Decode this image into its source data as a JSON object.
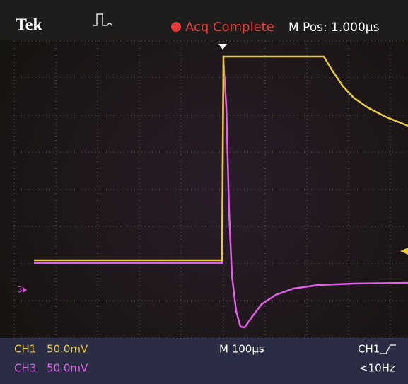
{
  "header": {
    "brand": "Tek",
    "status": "Acq Complete",
    "position": "M Pos: 1.000µs"
  },
  "channel_marker": "3",
  "footer": {
    "ch1_label": "CH1",
    "ch1_scale": "50.0mV",
    "ch3_label": "CH3",
    "ch3_scale": "50.0mV",
    "timebase": "M 100µs",
    "trigger_source": "CH1",
    "trigger_freq": "<10Hz"
  }
}
